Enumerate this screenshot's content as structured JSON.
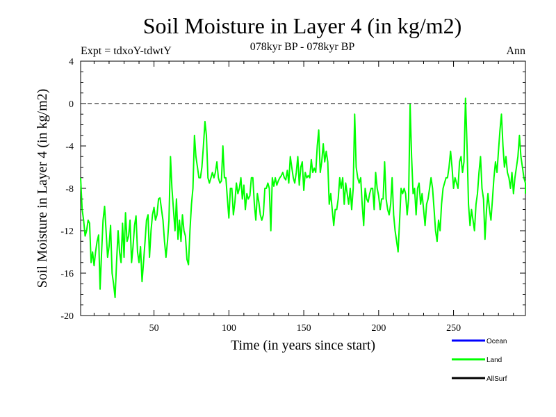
{
  "chart_data": {
    "type": "line",
    "title": "Soil Moisture in Layer 4 (in kg/m2)",
    "subtitle": "078kyr BP - 078kyr BP",
    "experiment": "Expt = tdxoY-tdwtY",
    "period": "Ann",
    "xlabel": "Time (in years since start)",
    "ylabel": "Soil Moisture in Layer 4 (in kg/m2)",
    "xlim": [
      1,
      298
    ],
    "ylim": [
      -20,
      4
    ],
    "xticks": [
      50,
      100,
      150,
      200,
      250
    ],
    "yticks": [
      -20,
      -16,
      -12,
      -8,
      -4,
      0,
      4
    ],
    "reference_line": 0,
    "legend": [
      {
        "name": "Ocean",
        "color": "#0000ff"
      },
      {
        "name": "Land",
        "color": "#00ff00"
      },
      {
        "name": "AllSurf",
        "color": "#000000"
      }
    ],
    "series": [
      {
        "name": "Land",
        "color": "#00ff00",
        "x_start": 1,
        "x_step": 1,
        "values": [
          -7,
          -10,
          -11,
          -12.5,
          -12,
          -11,
          -11.3,
          -15,
          -14,
          -15.3,
          -14,
          -13,
          -12.4,
          -17.5,
          -14,
          -11,
          -9.7,
          -12,
          -14.5,
          -13.5,
          -11.5,
          -16,
          -17,
          -18.3,
          -15,
          -12,
          -14,
          -15,
          -11.3,
          -14.5,
          -10.3,
          -13,
          -12.5,
          -11,
          -15,
          -13.5,
          -11.5,
          -10.6,
          -14,
          -15,
          -13.5,
          -16.8,
          -15,
          -13,
          -11,
          -10.5,
          -14.5,
          -12,
          -10.5,
          -9.8,
          -11,
          -10.5,
          -9,
          -8.9,
          -10,
          -11,
          -13,
          -14.5,
          -13,
          -11,
          -5,
          -8,
          -10,
          -12,
          -9,
          -12.8,
          -11,
          -13,
          -10.5,
          -12,
          -12.5,
          -14.7,
          -15.2,
          -12,
          -9.5,
          -8,
          -3,
          -5,
          -6,
          -7,
          -7,
          -6,
          -4,
          -1.7,
          -3,
          -7,
          -7.5,
          -7,
          -6.5,
          -7,
          -6.5,
          -5.5,
          -7,
          -7.5,
          -7.3,
          -4,
          -7,
          -7,
          -9,
          -10.8,
          -8,
          -8,
          -10.5,
          -9.3,
          -7.5,
          -8.5,
          -8,
          -7,
          -9,
          -7.7,
          -10,
          -8.5,
          -9,
          -8.7,
          -7,
          -7,
          -9.5,
          -11,
          -8.5,
          -9.3,
          -10.5,
          -11,
          -10.5,
          -8,
          -8,
          -7.5,
          -8,
          -12,
          -7,
          -7.8,
          -7,
          -7.7,
          -7.3,
          -7,
          -6.8,
          -6.5,
          -7,
          -7.2,
          -6.3,
          -7.5,
          -5,
          -6,
          -7,
          -7.5,
          -6.5,
          -5,
          -7.7,
          -6,
          -5.5,
          -8.2,
          -6.5,
          -7,
          -6.8,
          -7,
          -5.3,
          -6.5,
          -6.1,
          -6.5,
          -4,
          -2.5,
          -6.5,
          -5.5,
          -3.8,
          -5.5,
          -4.5,
          -5.5,
          -9.5,
          -8.5,
          -10,
          -11.5,
          -10,
          -10,
          -9,
          -7,
          -8,
          -7,
          -9.5,
          -7.5,
          -8.5,
          -9.5,
          -8,
          -10,
          -8,
          -1,
          -6,
          -7,
          -7.5,
          -7,
          -9.5,
          -11.5,
          -8,
          -9,
          -9.3,
          -8.5,
          -8,
          -8,
          -10,
          -6.5,
          -8,
          -8.7,
          -10,
          -9,
          -9,
          -5.5,
          -9,
          -10,
          -10.5,
          -9.5,
          -7,
          -10.5,
          -12,
          -13,
          -14,
          -11,
          -8,
          -8.5,
          -8,
          -8.5,
          -10.5,
          -9,
          -0.1,
          -5,
          -8.5,
          -8,
          -10.5,
          -8,
          -7.5,
          -9.5,
          -8.5,
          -10,
          -11.5,
          -9.5,
          -9,
          -8,
          -7,
          -8,
          -10,
          -12,
          -13,
          -11,
          -12,
          -9.5,
          -8,
          -7.5,
          -7,
          -7,
          -6,
          -4.5,
          -6,
          -8,
          -7,
          -7.5,
          -8,
          -5.5,
          -5,
          -6.5,
          -5.5,
          0.5,
          -4,
          -9.5,
          -11.5,
          -10,
          -11,
          -12,
          -9.5,
          -8.5,
          -6.5,
          -5,
          -8,
          -9,
          -12.8,
          -10,
          -8.5,
          -10,
          -11,
          -9,
          -7,
          -5.5,
          -6.5,
          -4.5,
          -2.5,
          -1,
          -4,
          -6,
          -5,
          -6.5,
          -7,
          -8,
          -6.5,
          -8.5,
          -7,
          -6,
          -5,
          -3,
          -5,
          -6,
          -7,
          -7.5,
          -8.5
        ]
      }
    ]
  }
}
